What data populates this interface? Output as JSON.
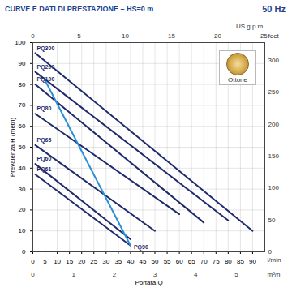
{
  "chart_data": {
    "type": "line",
    "title": "CURVE E DATI DI PRESTAZIONE – HS=0 m",
    "subtitle": "50 Hz",
    "x_label": "Portata Q",
    "x_unit": "l/min",
    "y_label": "Prevalenza H (metri)",
    "xlim": [
      0,
      95
    ],
    "xticks": [
      0,
      5,
      10,
      15,
      20,
      25,
      30,
      35,
      40,
      45,
      50,
      55,
      60,
      65,
      70,
      75,
      80,
      85,
      90
    ],
    "ylim": [
      0,
      100
    ],
    "yticks": [
      0,
      10,
      20,
      30,
      40,
      50,
      60,
      70,
      80,
      90,
      100
    ],
    "y2lim": [
      0,
      328
    ],
    "y2ticks": [
      0,
      50,
      100,
      150,
      200,
      250,
      300
    ],
    "y2_label": "feet",
    "x2lim": [
      0,
      25.1
    ],
    "x2ticks": [
      0,
      5,
      10,
      15,
      20,
      25
    ],
    "x2_label": "US g.p.m.",
    "x3lim": [
      0,
      5.7
    ],
    "x3ticks": [
      0,
      1,
      2,
      3,
      4,
      5
    ],
    "x3_label": "m³/h",
    "grid": true,
    "annotations": [
      {
        "text": "Ottone"
      }
    ],
    "series": [
      {
        "name": "PQ300",
        "color": "#1f2a6b",
        "x": [
          1,
          90
        ],
        "values": [
          95,
          10
        ]
      },
      {
        "name": "PQ200",
        "color": "#1f2a6b",
        "x": [
          1,
          80
        ],
        "values": [
          86,
          15
        ]
      },
      {
        "name": "PQ100",
        "color": "#1f2a6b",
        "x": [
          1,
          70
        ],
        "values": [
          80,
          14
        ]
      },
      {
        "name": "PQ80",
        "color": "#1f2a6b",
        "x": [
          1,
          60
        ],
        "values": [
          66,
          18
        ]
      },
      {
        "name": "PQ65",
        "color": "#1f2a6b",
        "x": [
          1,
          50
        ],
        "values": [
          51,
          10
        ]
      },
      {
        "name": "PQ60",
        "color": "#1f2a6b",
        "x": [
          1,
          40
        ],
        "values": [
          42,
          6
        ]
      },
      {
        "name": "PQ61",
        "color": "#1f2a6b",
        "x": [
          1,
          40
        ],
        "values": [
          37,
          3
        ]
      },
      {
        "name": "PQ90",
        "color": "#2a8fd6",
        "x": [
          5,
          40
        ],
        "values": [
          82,
          3
        ]
      }
    ]
  }
}
